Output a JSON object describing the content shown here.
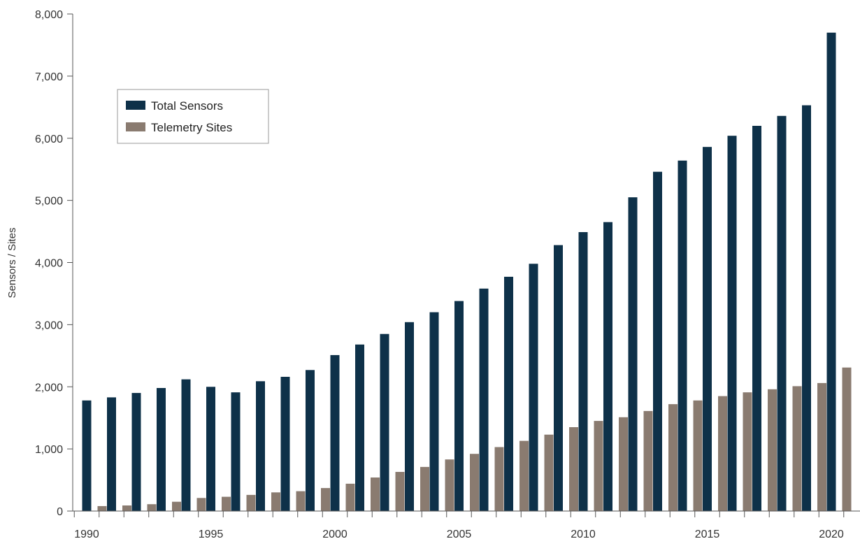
{
  "chart_data": {
    "type": "bar",
    "title": "",
    "xlabel": "",
    "ylabel": "Sensors / Sites",
    "ylim": [
      0,
      8000
    ],
    "yticks": [
      0,
      1000,
      2000,
      3000,
      4000,
      5000,
      6000,
      7000,
      8000
    ],
    "ytick_labels": [
      "0",
      "1,000",
      "2,000",
      "3,000",
      "4,000",
      "5,000",
      "6,000",
      "7,000",
      "8,000"
    ],
    "categories": [
      1990,
      1991,
      1992,
      1993,
      1994,
      1995,
      1996,
      1997,
      1998,
      1999,
      2000,
      2001,
      2002,
      2003,
      2004,
      2005,
      2006,
      2007,
      2008,
      2009,
      2010,
      2011,
      2012,
      2013,
      2014,
      2015,
      2016,
      2017,
      2018,
      2019,
      2020
    ],
    "xtick_labels": [
      "1990",
      "1995",
      "2000",
      "2005",
      "2010",
      "2015",
      "2020"
    ],
    "xtick_years": [
      1990,
      1995,
      2000,
      2005,
      2010,
      2015,
      2020
    ],
    "grid": false,
    "legend_position": "upper-left",
    "series": [
      {
        "name": "Total Sensors",
        "color": "#0e3149",
        "values": [
          1780,
          1830,
          1900,
          1980,
          2120,
          2000,
          1910,
          2090,
          2160,
          2270,
          2510,
          2680,
          2850,
          3040,
          3200,
          3380,
          3580,
          3770,
          3980,
          4280,
          4490,
          4650,
          5050,
          5460,
          5640,
          5860,
          6040,
          6200,
          6360,
          6530,
          7700
        ]
      },
      {
        "name": "Telemetry Sites",
        "color": "#8a7b70",
        "values": [
          80,
          90,
          110,
          150,
          210,
          230,
          260,
          300,
          320,
          370,
          440,
          540,
          630,
          710,
          830,
          920,
          1030,
          1130,
          1230,
          1350,
          1450,
          1510,
          1610,
          1720,
          1780,
          1850,
          1910,
          1960,
          2010,
          2060,
          2310
        ]
      }
    ]
  }
}
